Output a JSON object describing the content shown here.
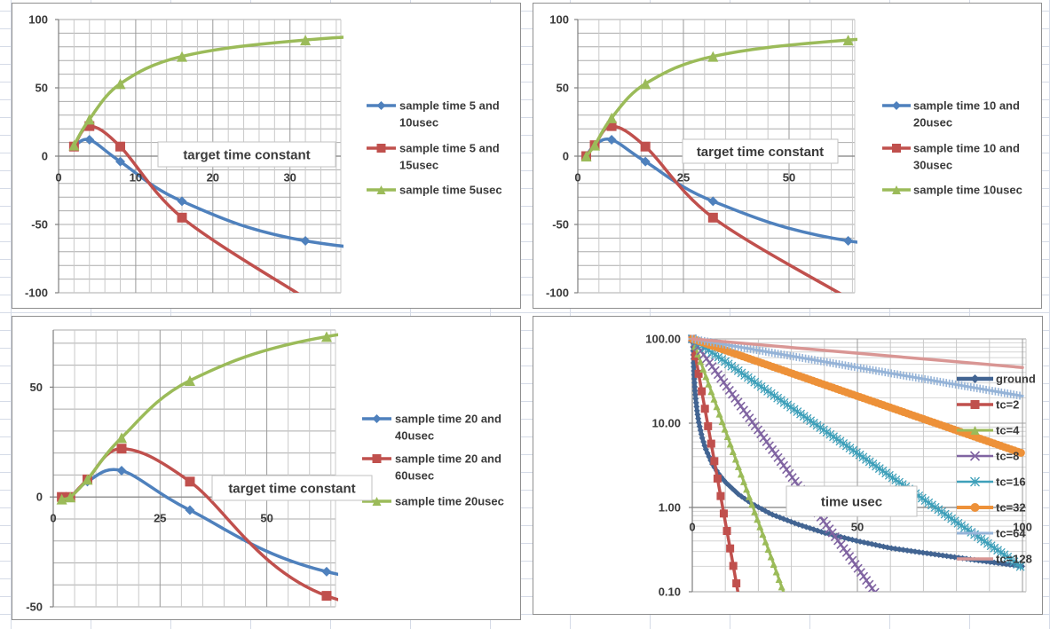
{
  "surface": {
    "type": "spreadsheet with four embedded charts",
    "background": "#ffffff",
    "cell_grid_color": "#d5dbe7"
  },
  "chart_data": [
    {
      "id": "top-left",
      "type": "line",
      "y_scale": "linear",
      "annotation": "target time constant",
      "legend_position": "right",
      "xlim": [
        0,
        36.6
      ],
      "ylim": [
        -100,
        100
      ],
      "x_minor_step": 2,
      "y_grid_step": 10,
      "x_ticks": {
        "values": [
          0,
          10,
          20,
          30
        ],
        "labels": [
          "0",
          "10",
          "20",
          "30"
        ]
      },
      "y_ticks": {
        "values": [
          100,
          50,
          0,
          -50,
          -100
        ],
        "labels": [
          "100",
          "50",
          "0",
          "-50",
          "-100"
        ]
      },
      "series": [
        {
          "name": "sample time 5 and 10usec",
          "legend_lines": [
            "sample time 5 and",
            "10usec"
          ],
          "color": "#4f81bd",
          "marker": "diamond",
          "smooth": true,
          "x": [
            2,
            4,
            8,
            16,
            32
          ],
          "y": [
            7,
            12,
            -4,
            -33,
            -62
          ],
          "trail": [
            64,
            -80
          ]
        },
        {
          "name": "sample time 5 and 15usec",
          "legend_lines": [
            "sample time 5 and",
            "15usec"
          ],
          "color": "#c0504d",
          "marker": "square",
          "smooth": true,
          "x": [
            2,
            4,
            8,
            16
          ],
          "y": [
            7,
            22,
            7,
            -45
          ],
          "trail": [
            32,
            -104
          ]
        },
        {
          "name": "sample time 5usec",
          "legend_lines": [
            "sample time 5usec"
          ],
          "color": "#9bbb59",
          "marker": "triangle",
          "smooth": true,
          "x": [
            2,
            4,
            8,
            16,
            32
          ],
          "y": [
            8,
            27,
            53,
            73,
            85
          ],
          "trail": [
            64,
            96
          ]
        }
      ]
    },
    {
      "id": "top-right",
      "type": "line",
      "y_scale": "linear",
      "annotation": "target time constant",
      "legend_position": "right",
      "xlim": [
        0,
        65.5
      ],
      "ylim": [
        -100,
        100
      ],
      "x_minor_step": 5,
      "y_grid_step": 10,
      "x_ticks": {
        "values": [
          0,
          25,
          50
        ],
        "labels": [
          "0",
          "25",
          "50"
        ]
      },
      "y_ticks": {
        "values": [
          100,
          50,
          0,
          -50,
          -100
        ],
        "labels": [
          "100",
          "50",
          "0",
          "-50",
          "-100"
        ]
      },
      "series": [
        {
          "name": "sample time 10 and 20usec",
          "legend_lines": [
            "sample time 10 and",
            "20usec"
          ],
          "color": "#4f81bd",
          "marker": "diamond",
          "smooth": true,
          "x": [
            2,
            4,
            8,
            16,
            32,
            64
          ],
          "y": [
            0,
            8,
            12,
            -4,
            -33,
            -62
          ],
          "trail": [
            128,
            -80
          ]
        },
        {
          "name": "sample time 10 and 30usec",
          "legend_lines": [
            "sample time 10 and",
            "30usec"
          ],
          "color": "#c0504d",
          "marker": "square",
          "smooth": true,
          "x": [
            2,
            4,
            8,
            16,
            32
          ],
          "y": [
            0,
            8,
            22,
            7,
            -45
          ],
          "trail": [
            64,
            -104
          ]
        },
        {
          "name": "sample time 10usec",
          "legend_lines": [
            "sample time 10usec"
          ],
          "color": "#9bbb59",
          "marker": "triangle",
          "smooth": true,
          "x": [
            2,
            4,
            8,
            16,
            32,
            64
          ],
          "y": [
            0,
            8,
            28,
            53,
            73,
            85
          ],
          "trail": [
            128,
            96
          ]
        }
      ]
    },
    {
      "id": "bottom-left",
      "type": "line",
      "y_scale": "linear",
      "annotation": "target time constant",
      "legend_position": "right",
      "xlim": [
        0,
        66
      ],
      "ylim": [
        -50,
        76
      ],
      "x_minor_step": 5,
      "y_grid_step": 10,
      "x_ticks": {
        "values": [
          0,
          25,
          50
        ],
        "labels": [
          "0",
          "25",
          "50"
        ]
      },
      "y_ticks": {
        "values": [
          50,
          0,
          -50
        ],
        "labels": [
          "50",
          "0",
          "-50"
        ]
      },
      "series": [
        {
          "name": "sample time 20 and 40usec",
          "legend_lines": [
            "sample time 20 and",
            "40usec"
          ],
          "color": "#4f81bd",
          "marker": "diamond",
          "smooth": true,
          "x": [
            2,
            4,
            8,
            16,
            32,
            64
          ],
          "y": [
            0,
            0,
            7,
            12,
            -6,
            -34
          ],
          "trail": [
            128,
            -52
          ]
        },
        {
          "name": "sample time 20 and 60usec",
          "legend_lines": [
            "sample time 20 and",
            "60usec"
          ],
          "color": "#c0504d",
          "marker": "square",
          "smooth": true,
          "x": [
            2,
            4,
            8,
            16,
            32,
            64
          ],
          "y": [
            0,
            0,
            8,
            22,
            7,
            -45
          ],
          "trail": [
            128,
            -62
          ]
        },
        {
          "name": "sample time 20usec",
          "legend_lines": [
            "sample time 20usec"
          ],
          "color": "#9bbb59",
          "marker": "triangle",
          "smooth": true,
          "x": [
            2,
            4,
            8,
            16,
            32,
            64
          ],
          "y": [
            -1,
            0,
            8,
            27,
            53,
            73
          ],
          "trail": [
            128,
            86
          ]
        }
      ]
    },
    {
      "id": "bottom-right",
      "type": "line",
      "y_scale": "log",
      "annotation": "time usec",
      "legend_position": "overlay-right",
      "x_axis_cross_y": 1.0,
      "xlim": [
        0,
        101
      ],
      "ylim": [
        0.1,
        100
      ],
      "x_minor_step": 10,
      "x_ticks": {
        "values": [
          0,
          50,
          100
        ],
        "labels": [
          "0",
          "50",
          "100"
        ]
      },
      "y_ticks": {
        "values": [
          100,
          10,
          1,
          0.1
        ],
        "labels": [
          "100.00",
          "10.00",
          "1.00",
          "0.10"
        ]
      },
      "series": [
        {
          "name": "ground",
          "legend_lines": [
            "ground"
          ],
          "color": "#426492",
          "marker": "diamond",
          "dense": true,
          "x": [
            0.2,
            0.3,
            0.4,
            0.6,
            0.8,
            1,
            1.5,
            2,
            3,
            4,
            6,
            8,
            10,
            14,
            18,
            24,
            32,
            40,
            50,
            60,
            70,
            85,
            100
          ],
          "y": [
            100,
            66.7,
            50,
            33.3,
            25,
            20,
            13.3,
            10,
            6.7,
            5,
            3.3,
            2.5,
            2,
            1.43,
            1.11,
            0.83,
            0.63,
            0.5,
            0.4,
            0.33,
            0.29,
            0.24,
            0.2
          ]
        },
        {
          "name": "tc=2",
          "legend_lines": [
            "tc=2"
          ],
          "color": "#c0504d",
          "marker": "square",
          "dense": true,
          "x": [
            0,
            2,
            4,
            6,
            8,
            10,
            12,
            14
          ],
          "y": [
            100,
            36.79,
            13.53,
            4.98,
            1.83,
            0.67,
            0.25,
            0.09
          ]
        },
        {
          "name": "tc=4",
          "legend_lines": [
            "tc=4"
          ],
          "color": "#9bbb59",
          "marker": "triangle",
          "dense": true,
          "x": [
            0,
            4,
            8,
            12,
            16,
            20,
            24,
            28
          ],
          "y": [
            100,
            36.79,
            13.53,
            4.98,
            1.83,
            0.67,
            0.25,
            0.09
          ]
        },
        {
          "name": "tc=8",
          "legend_lines": [
            "tc=8"
          ],
          "color": "#8064a2",
          "marker": "x",
          "dense": true,
          "x": [
            0,
            8,
            16,
            24,
            32,
            40,
            48,
            56
          ],
          "y": [
            100,
            36.79,
            13.53,
            4.98,
            1.83,
            0.67,
            0.25,
            0.09
          ]
        },
        {
          "name": "tc=16",
          "legend_lines": [
            "tc=16"
          ],
          "color": "#3fa0ba",
          "marker": "asterisk",
          "dense": true,
          "x": [
            0,
            16,
            32,
            48,
            64,
            80,
            96,
            100
          ],
          "y": [
            100,
            36.79,
            13.53,
            4.98,
            1.83,
            0.67,
            0.25,
            0.19
          ]
        },
        {
          "name": "tc=32",
          "legend_lines": [
            "tc=32"
          ],
          "color": "#ed9139",
          "marker": "circle",
          "dense": true,
          "x": [
            0,
            16,
            32,
            48,
            64,
            80,
            100
          ],
          "y": [
            100,
            60.65,
            36.79,
            22.31,
            13.53,
            8.21,
            4.39
          ]
        },
        {
          "name": "tc=64",
          "legend_lines": [
            "tc=64"
          ],
          "color": "#95b3d7",
          "marker": "plus",
          "dense": true,
          "x": [
            0,
            20,
            40,
            60,
            80,
            100
          ],
          "y": [
            100,
            73.16,
            53.53,
            39.16,
            28.65,
            20.96
          ]
        },
        {
          "name": "tc=128",
          "legend_lines": [
            "tc=128"
          ],
          "color": "#d99694",
          "marker": "dash",
          "dense": true,
          "x": [
            0,
            25,
            50,
            75,
            100
          ],
          "y": [
            100,
            82.26,
            67.66,
            55.67,
            45.79
          ]
        }
      ]
    }
  ]
}
